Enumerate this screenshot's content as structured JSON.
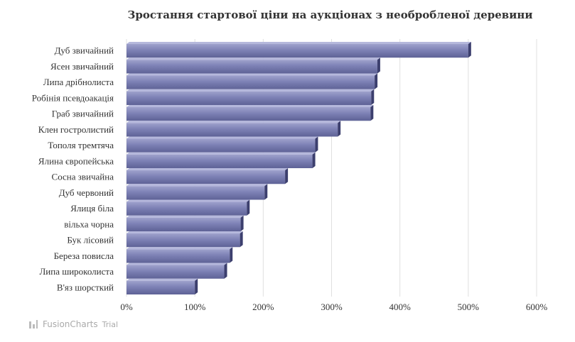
{
  "chart_data": {
    "type": "bar",
    "orientation": "horizontal",
    "title": "Зростання стартової ціни на аукціонах з необробленої деревини",
    "xlabel": "",
    "ylabel": "",
    "categories": [
      "Дуб звичайний",
      "Ясен звичайний",
      "Липа дрібнолиста",
      "Робінія псевдоакація",
      "Граб звичайний",
      "Клен гостролистий",
      "Тополя тремтяча",
      "Ялина європейська",
      "Сосна звичайна",
      "Дуб червоний",
      "Ялиця біла",
      "вільха чорна",
      "Бук лісовий",
      "Береза повисла",
      "Липа широколиста",
      "В'яз шорсткий"
    ],
    "values": [
      500,
      367,
      363,
      358,
      357,
      309,
      276,
      272,
      232,
      202,
      176,
      167,
      166,
      151,
      143,
      100
    ],
    "unit": "%",
    "xlim": [
      0,
      600
    ],
    "ticks": [
      "0%",
      "100%",
      "200%",
      "300%",
      "400%",
      "500%",
      "600%"
    ],
    "tick_values": [
      0,
      100,
      200,
      300,
      400,
      500,
      600
    ],
    "grid": true,
    "bar_color": "#7b7fb3"
  },
  "branding": {
    "name": "FusionCharts",
    "suffix": "Trial"
  }
}
